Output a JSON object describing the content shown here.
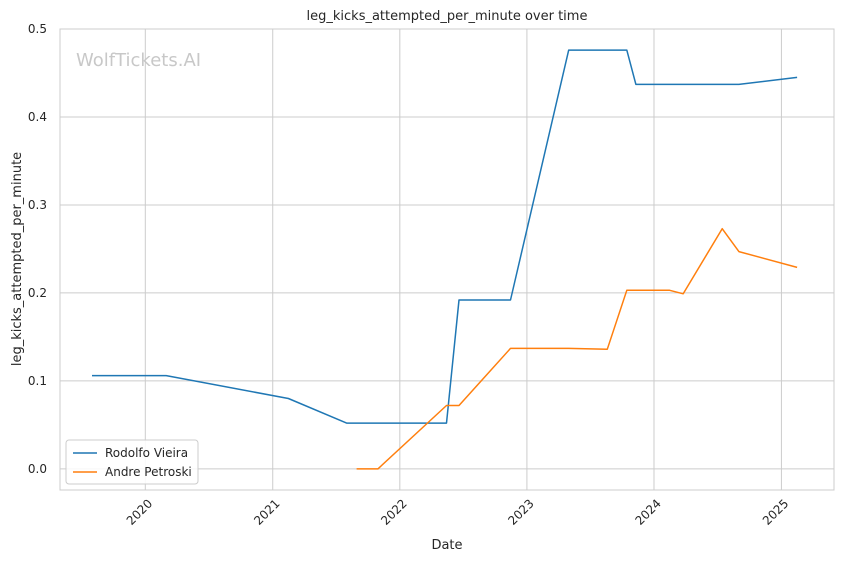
{
  "chart_data": {
    "type": "line",
    "title": "leg_kicks_attempted_per_minute over time",
    "xlabel": "Date",
    "ylabel": "leg_kicks_attempted_per_minute",
    "watermark": "WolfTickets.AI",
    "x_ticks": [
      "2020",
      "2021",
      "2022",
      "2023",
      "2024",
      "2025"
    ],
    "y_ticks": [
      "0.0",
      "0.1",
      "0.2",
      "0.3",
      "0.4",
      "0.5"
    ],
    "ylim": [
      -0.024,
      0.5
    ],
    "xlim": [
      "2019-05-01",
      "2025-06-01"
    ],
    "grid": true,
    "legend_position": "lower-left",
    "series": [
      {
        "name": "Rodolfo Vieira",
        "color": "#1f77b4",
        "x": [
          "2019-08-01",
          "2020-03-01",
          "2021-02-15",
          "2021-08-01",
          "2022-05-15",
          "2022-06-20",
          "2022-11-15",
          "2023-05-01",
          "2023-10-15",
          "2023-11-10",
          "2024-09-01",
          "2025-02-15"
        ],
        "y": [
          0.106,
          0.106,
          0.08,
          0.052,
          0.052,
          0.192,
          0.192,
          0.476,
          0.476,
          0.437,
          0.437,
          0.445
        ]
      },
      {
        "name": "Andre Petroski",
        "color": "#ff7f0e",
        "x": [
          "2021-08-30",
          "2021-10-30",
          "2022-05-15",
          "2022-06-20",
          "2022-11-15",
          "2023-05-01",
          "2023-08-20",
          "2023-10-15",
          "2024-02-15",
          "2024-03-25",
          "2024-07-15",
          "2024-09-01",
          "2025-02-15"
        ],
        "y": [
          0.0,
          0.0,
          0.072,
          0.072,
          0.137,
          0.137,
          0.136,
          0.203,
          0.203,
          0.199,
          0.273,
          0.247,
          0.229
        ]
      }
    ]
  }
}
